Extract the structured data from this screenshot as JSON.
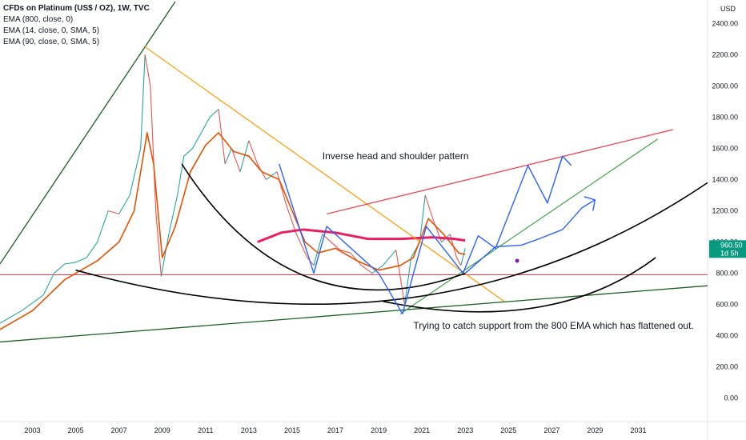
{
  "legend": {
    "title": "CFDs on Platinum (US$ / OZ), 1W, TVC",
    "lines": [
      "EMA (800, close, 0)",
      "EMA (14, close, 0, SMA, 5)",
      "EMA (90, close, 0, SMA, 5)"
    ]
  },
  "currency": "USD",
  "price_tag": {
    "value": "960.50",
    "countdown": "1d 5h",
    "color": "#089981"
  },
  "annotations": {
    "pattern": "Inverse head and shoulder pattern",
    "support": "Trying to catch support from the 800 EMA which has flattened out."
  },
  "colors": {
    "price_up": "#26a69a",
    "price_down": "#ef5350",
    "ema800": "#e91e63",
    "ema14": "#e65100",
    "ema90_orange": "#ff9800",
    "red_lines": "#f23645",
    "blue_path": "#2962ff",
    "arc": "#000000",
    "green_line": "#1b5e20",
    "teal_line": "#43a047"
  },
  "chart_data": {
    "type": "line",
    "ylim": [
      -150,
      2550
    ],
    "xlim": [
      2001.5,
      2034.2
    ],
    "y_ticks": [
      "0.00",
      "200.00",
      "400.00",
      "600.00",
      "800.00",
      "1000.00",
      "1200.00",
      "1400.00",
      "1600.00",
      "1800.00",
      "2000.00",
      "2200.00",
      "2400.00"
    ],
    "x_ticks": [
      "2003",
      "2005",
      "2007",
      "2009",
      "2011",
      "2013",
      "2015",
      "2017",
      "2019",
      "2021",
      "2023",
      "2025",
      "2027",
      "2029",
      "2031"
    ],
    "series": [
      {
        "values": [
          [
            2001.5,
            480
          ],
          [
            2002.0,
            520
          ],
          [
            2002.5,
            560
          ],
          [
            2003.0,
            610
          ],
          [
            2003.5,
            660
          ],
          [
            2004.0,
            800
          ],
          [
            2004.5,
            860
          ],
          [
            2005.0,
            870
          ],
          [
            2005.5,
            900
          ],
          [
            2006.0,
            1000
          ],
          [
            2006.5,
            1200
          ],
          [
            2007.0,
            1180
          ],
          [
            2007.5,
            1300
          ],
          [
            2008.0,
            1600
          ],
          [
            2008.2,
            2200
          ],
          [
            2008.45,
            2000
          ],
          [
            2008.7,
            1200
          ],
          [
            2008.95,
            780
          ],
          [
            2009.3,
            1050
          ],
          [
            2009.7,
            1300
          ],
          [
            2010.0,
            1550
          ],
          [
            2010.4,
            1600
          ],
          [
            2010.8,
            1700
          ],
          [
            2011.2,
            1800
          ],
          [
            2011.6,
            1850
          ],
          [
            2011.9,
            1500
          ],
          [
            2012.2,
            1600
          ],
          [
            2012.6,
            1450
          ],
          [
            2013.0,
            1650
          ],
          [
            2013.4,
            1500
          ],
          [
            2013.8,
            1400
          ],
          [
            2014.3,
            1450
          ],
          [
            2014.7,
            1250
          ],
          [
            2015.2,
            1050
          ],
          [
            2015.7,
            900
          ],
          [
            2016.0,
            850
          ],
          [
            2016.4,
            1050
          ],
          [
            2016.8,
            1000
          ],
          [
            2017.2,
            950
          ],
          [
            2017.7,
            930
          ],
          [
            2018.2,
            850
          ],
          [
            2018.7,
            800
          ],
          [
            2019.2,
            850
          ],
          [
            2019.8,
            950
          ],
          [
            2020.2,
            600
          ],
          [
            2020.5,
            900
          ],
          [
            2020.9,
            1000
          ],
          [
            2021.15,
            1300
          ],
          [
            2021.5,
            1150
          ],
          [
            2021.9,
            1000
          ],
          [
            2022.3,
            1050
          ],
          [
            2022.6,
            900
          ],
          [
            2022.8,
            850
          ],
          [
            2023.0,
            960
          ]
        ]
      }
    ]
  }
}
